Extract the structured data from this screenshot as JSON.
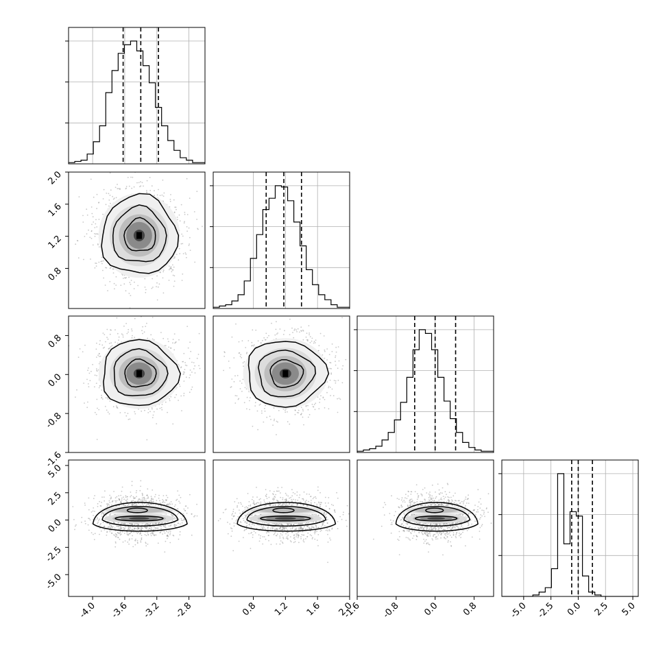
{
  "chart_data": {
    "type": "corner",
    "title": "",
    "parameters": [
      {
        "range": [
          -4.3,
          -2.6
        ],
        "ticks": [
          "-4.0",
          "-3.6",
          "-3.2",
          "-2.8"
        ],
        "tick_values": [
          -4.0,
          -3.6,
          -3.2,
          -2.8
        ],
        "quantiles": [
          -3.62,
          -3.4,
          -3.18
        ],
        "hist": [
          1,
          2,
          3,
          8,
          18,
          31,
          58,
          76,
          90,
          97,
          100,
          92,
          80,
          66,
          46,
          31,
          19,
          11,
          5,
          3,
          1,
          1
        ]
      },
      {
        "range": [
          0.3,
          2.0
        ],
        "ticks": [
          "0.8",
          "1.2",
          "1.6",
          "2.0"
        ],
        "tick_values": [
          0.8,
          1.2,
          1.6,
          2.0
        ],
        "quantiles": [
          0.96,
          1.18,
          1.4
        ],
        "hist": [
          1,
          2,
          3,
          6,
          11,
          22,
          40,
          59,
          79,
          88,
          98,
          97,
          86,
          69,
          50,
          31,
          19,
          11,
          7,
          3,
          1,
          1
        ]
      },
      {
        "range": [
          -1.6,
          1.2
        ],
        "ticks": [
          "-1.6",
          "-0.8",
          "0.0",
          "0.8"
        ],
        "tick_values": [
          -1.6,
          -0.8,
          0.0,
          0.8
        ],
        "quantiles": [
          -0.42,
          0.0,
          0.42
        ],
        "hist": [
          1,
          2,
          3,
          5,
          10,
          16,
          26,
          40,
          60,
          82,
          98,
          95,
          82,
          60,
          41,
          27,
          16,
          8,
          4,
          2,
          1,
          1
        ]
      },
      {
        "range": [
          -7.0,
          5.5
        ],
        "ticks": [
          "-5.0",
          "-2.5",
          "0.0",
          "2.5",
          "5.0"
        ],
        "tick_values": [
          -5.0,
          -2.5,
          0.0,
          2.5,
          5.0
        ],
        "quantiles": [
          -0.6,
          0.0,
          1.3
        ],
        "hist": [
          0,
          0,
          0,
          0,
          0,
          1,
          3,
          6,
          19,
          84,
          36,
          58,
          55,
          14,
          3,
          1,
          0,
          0,
          0,
          0,
          0,
          0
        ]
      }
    ],
    "pairs": [
      {
        "row": 1,
        "col": 0,
        "center": [
          -3.42,
          1.21
        ],
        "sd": [
          0.23,
          0.24
        ]
      },
      {
        "row": 2,
        "col": 0,
        "center": [
          -3.42,
          0.02
        ],
        "sd": [
          0.23,
          0.33
        ]
      },
      {
        "row": 2,
        "col": 1,
        "center": [
          1.2,
          0.02
        ],
        "sd": [
          0.24,
          0.33
        ]
      },
      {
        "row": 3,
        "col": 0,
        "center": [
          -3.42,
          0.3
        ],
        "sd": [
          0.23,
          1.3
        ]
      },
      {
        "row": 3,
        "col": 1,
        "center": [
          1.2,
          0.3
        ],
        "sd": [
          0.24,
          1.3
        ]
      },
      {
        "row": 3,
        "col": 2,
        "center": [
          0.02,
          0.3
        ],
        "sd": [
          0.33,
          1.3
        ]
      }
    ],
    "grid": true,
    "quantile_lines": "dashed"
  }
}
